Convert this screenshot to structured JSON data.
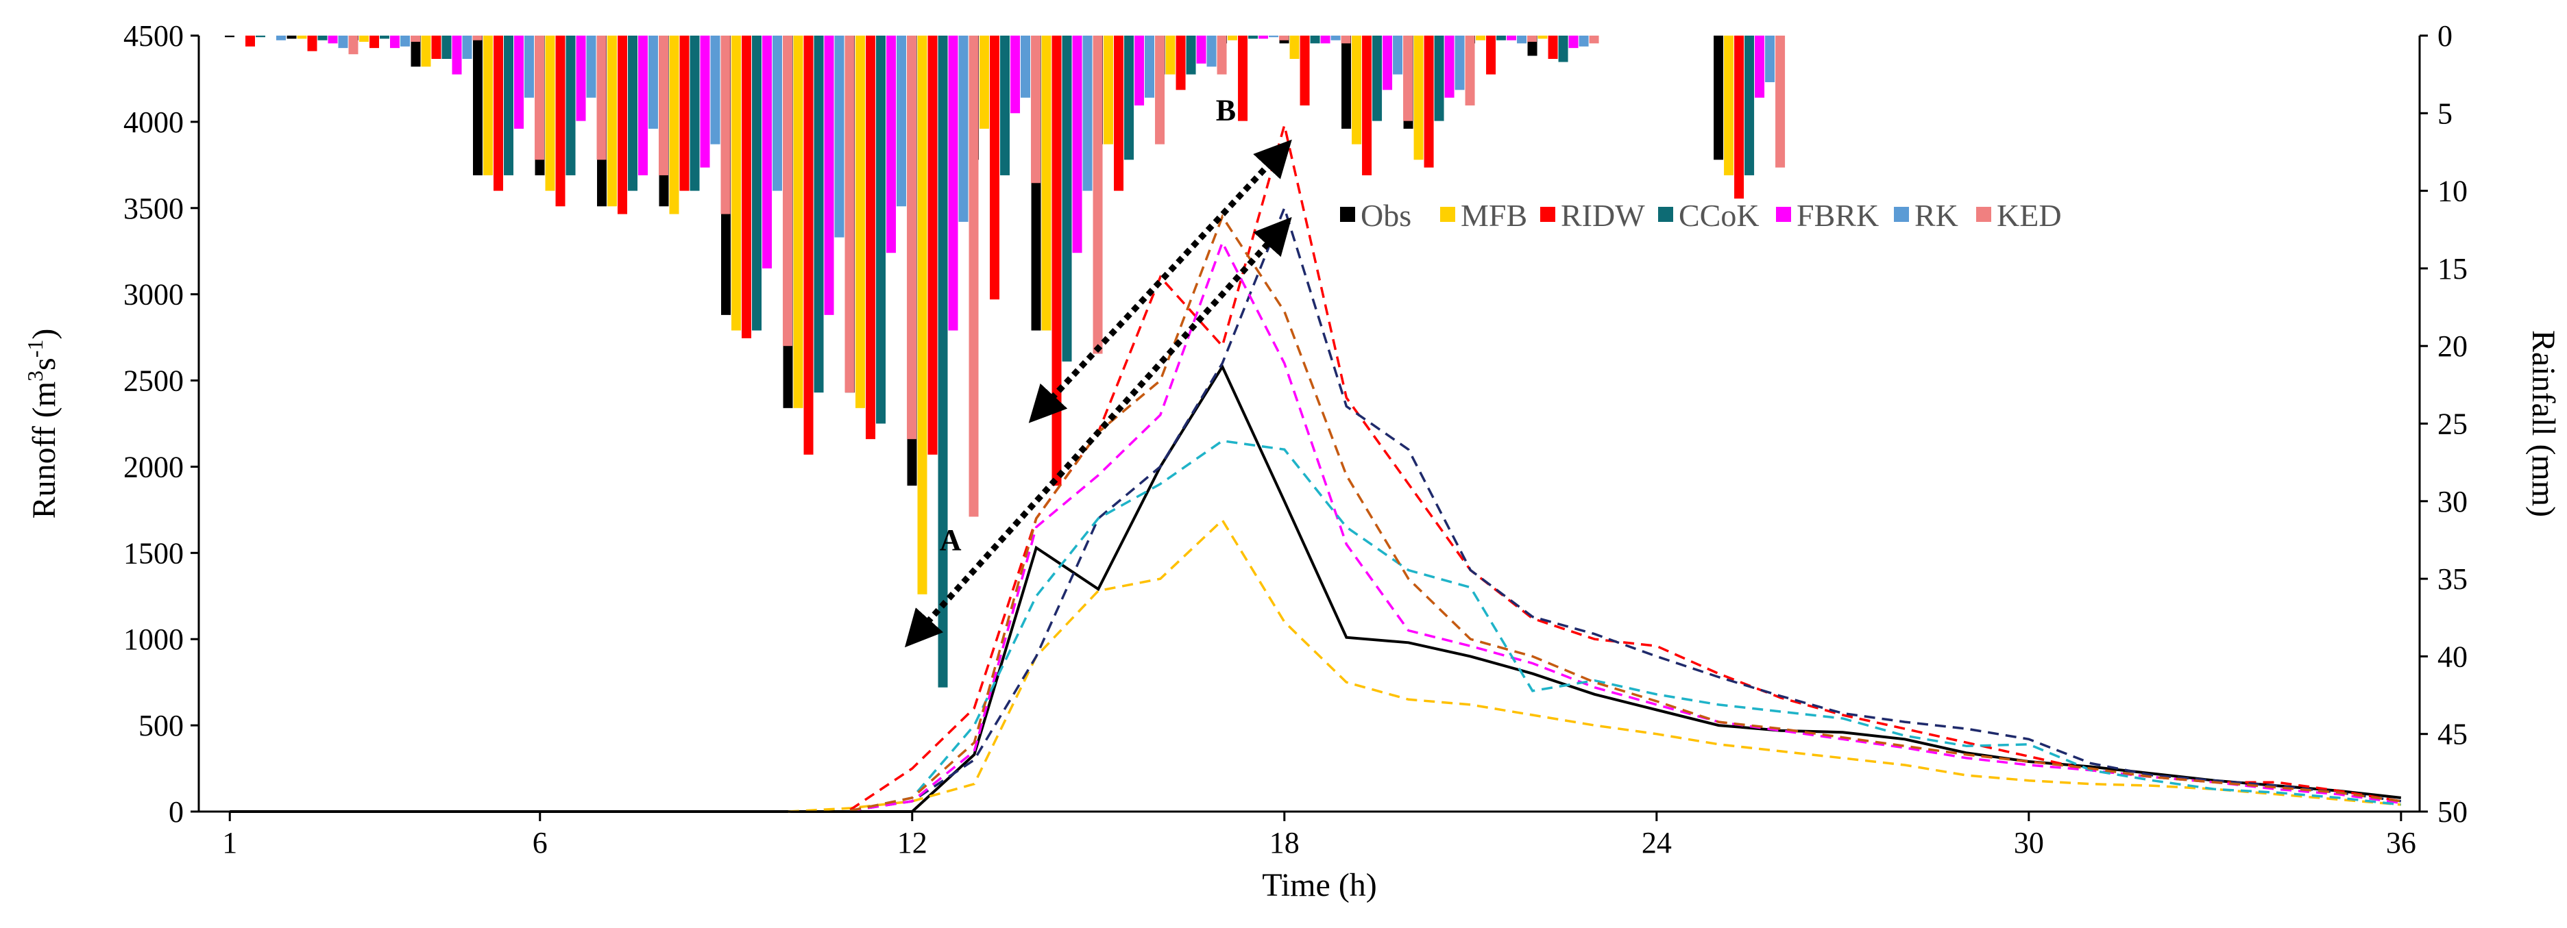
{
  "chart_data": {
    "type": "bar+line",
    "xlabel": "Time  (h)",
    "ylabel_left": "Runoff (m3s-1)",
    "ylabel_right": "Rainfall (mm)",
    "x_range": [
      1,
      36
    ],
    "x_ticks": [
      "1",
      "6",
      "12",
      "18",
      "24",
      "30",
      "36"
    ],
    "y_left_range": [
      0,
      4500
    ],
    "y_left_ticks": [
      "0",
      "500",
      "1000",
      "1500",
      "2000",
      "2500",
      "3000",
      "3500",
      "4000",
      "4500"
    ],
    "y_right_range": [
      0,
      50
    ],
    "y_right_inverted": true,
    "y_right_ticks": [
      "0",
      "5",
      "10",
      "15",
      "20",
      "25",
      "30",
      "35",
      "40",
      "45",
      "50"
    ],
    "bar_series": [
      {
        "name": "Obs",
        "color": "#000000",
        "values": [
          0.1,
          0.2,
          0.3,
          2,
          9,
          9,
          11,
          11,
          18,
          24,
          23,
          29,
          8,
          19,
          7,
          2.5,
          0.5,
          0.5,
          6,
          6,
          0.5,
          1.3,
          0,
          0,
          8
        ]
      },
      {
        "name": "MFB",
        "color": "#ffd000",
        "values": [
          0,
          0.2,
          0.4,
          2,
          9,
          10,
          11,
          11.5,
          19,
          24,
          24,
          36,
          6,
          19,
          7,
          2.5,
          0.3,
          1.5,
          7,
          8,
          0.3,
          0.2,
          0,
          0,
          9
        ]
      },
      {
        "name": "RIDW",
        "color": "#ff0000",
        "values": [
          0.7,
          1,
          0.8,
          1.5,
          10,
          11,
          11.5,
          10,
          19.5,
          27,
          26,
          27,
          17,
          29,
          10,
          3.5,
          5.5,
          4.5,
          9,
          8.5,
          2.5,
          1.5,
          0,
          0,
          10.5
        ]
      },
      {
        "name": "CCoK",
        "color": "#0d6b74",
        "values": [
          0.1,
          0.3,
          0.2,
          1.5,
          9,
          9,
          10,
          10,
          19,
          23,
          25,
          42,
          9,
          21,
          8,
          2.5,
          0.2,
          0.5,
          5.5,
          5.5,
          0.3,
          1.7,
          0,
          0,
          9
        ]
      },
      {
        "name": "FBRK",
        "color": "#ff00ff",
        "values": [
          0,
          0.5,
          0.8,
          2.5,
          6,
          5.5,
          9,
          8.5,
          15,
          18,
          14,
          19,
          5,
          14,
          4.5,
          1.8,
          0.2,
          0.5,
          3.5,
          4,
          0.3,
          0.8,
          0,
          0,
          4
        ]
      },
      {
        "name": "RK",
        "color": "#5b9bd5",
        "values": [
          0.3,
          0.8,
          0.7,
          1.5,
          4,
          4,
          6,
          7,
          10,
          13,
          11,
          12,
          4,
          10,
          4,
          2,
          0.1,
          0.3,
          2.5,
          3.5,
          0.5,
          0.7,
          0,
          0,
          3
        ]
      },
      {
        "name": "KED",
        "color": "#f08080",
        "values": [
          0,
          1.2,
          0.4,
          0.3,
          8,
          8,
          9,
          11.5,
          20,
          23,
          26,
          31,
          9.5,
          20.5,
          7,
          2.5,
          0.3,
          0.5,
          5.5,
          4.5,
          0.4,
          0.5,
          0,
          0,
          8.5
        ]
      }
    ],
    "line_series": [
      {
        "name": "Obs",
        "style": "solid",
        "color": "#000000",
        "x": [
          1,
          2,
          3,
          4,
          5,
          6,
          7,
          8,
          9,
          10,
          11,
          12,
          13,
          14,
          15,
          16,
          17,
          18,
          19,
          20,
          21,
          22,
          23,
          24,
          25,
          26,
          27,
          28,
          29,
          30,
          31,
          32,
          33,
          34,
          35,
          36
        ],
        "y": [
          0,
          0,
          0,
          0,
          0,
          0,
          0,
          0,
          0,
          0,
          0,
          0,
          330,
          1530,
          1290,
          2000,
          2580,
          1800,
          1010,
          980,
          900,
          800,
          680,
          590,
          500,
          470,
          460,
          420,
          340,
          290,
          260,
          220,
          180,
          150,
          120,
          80
        ]
      },
      {
        "name": "MFB",
        "style": "dashed",
        "color": "#ffc000",
        "x": [
          10,
          11,
          12,
          13,
          14,
          15,
          16,
          17,
          18,
          19,
          20,
          21,
          22,
          23,
          24,
          25,
          26,
          27,
          28,
          29,
          30,
          31,
          32,
          33,
          34,
          35,
          36
        ],
        "y": [
          0,
          20,
          60,
          160,
          900,
          1280,
          1350,
          1690,
          1100,
          750,
          650,
          620,
          560,
          500,
          450,
          390,
          350,
          310,
          270,
          210,
          180,
          160,
          150,
          130,
          100,
          70,
          40
        ]
      },
      {
        "name": "RIDW",
        "style": "dashed",
        "color": "#ff0000",
        "x": [
          11,
          12,
          13,
          14,
          15,
          16,
          17,
          18,
          19,
          20,
          21,
          22,
          23,
          24,
          25,
          26,
          27,
          28,
          29,
          30,
          31,
          32,
          33,
          34,
          35,
          36
        ],
        "y": [
          10,
          250,
          600,
          1700,
          2200,
          3100,
          2700,
          3980,
          2400,
          1900,
          1400,
          1120,
          1000,
          960,
          800,
          660,
          560,
          480,
          400,
          320,
          240,
          200,
          170,
          170,
          120,
          60
        ]
      },
      {
        "name": "CCoK",
        "style": "dashed",
        "color": "#1f2a6b",
        "x": [
          11,
          12,
          13,
          14,
          15,
          16,
          17,
          18,
          19,
          20,
          21,
          22,
          23,
          24,
          25,
          26,
          27,
          28,
          29,
          30,
          31,
          32,
          33,
          34,
          35,
          36
        ],
        "y": [
          5,
          60,
          300,
          900,
          1700,
          2000,
          2600,
          3500,
          2350,
          2100,
          1400,
          1130,
          1030,
          900,
          780,
          670,
          570,
          520,
          480,
          420,
          280,
          210,
          180,
          150,
          110,
          60
        ]
      },
      {
        "name": "FBRK",
        "style": "dashed",
        "color": "#ff00ff",
        "x": [
          11,
          12,
          13,
          14,
          15,
          16,
          17,
          18,
          19,
          20,
          21,
          22,
          23,
          24,
          25,
          26,
          27,
          28,
          29,
          30,
          31,
          32,
          33,
          34,
          35,
          36
        ],
        "y": [
          5,
          60,
          350,
          1650,
          1950,
          2300,
          3300,
          2600,
          1550,
          1050,
          960,
          860,
          720,
          620,
          520,
          470,
          420,
          370,
          310,
          270,
          240,
          200,
          170,
          130,
          100,
          50
        ]
      },
      {
        "name": "RK",
        "style": "dashed",
        "color": "#1fb3c8",
        "x": [
          11,
          12,
          13,
          14,
          15,
          16,
          17,
          18,
          19,
          20,
          21,
          22,
          23,
          24,
          25,
          26,
          27,
          28,
          29,
          30,
          31,
          32,
          33,
          34,
          35,
          36
        ],
        "y": [
          5,
          80,
          500,
          1250,
          1700,
          1900,
          2150,
          2100,
          1650,
          1400,
          1300,
          700,
          760,
          680,
          620,
          580,
          540,
          440,
          380,
          390,
          240,
          180,
          130,
          110,
          80,
          40
        ]
      },
      {
        "name": "KED",
        "style": "dashed",
        "color": "#c55a11",
        "x": [
          11,
          12,
          13,
          14,
          15,
          16,
          17,
          18,
          19,
          20,
          21,
          22,
          23,
          24,
          25,
          26,
          27,
          28,
          29,
          30,
          31,
          32,
          33,
          34,
          35,
          36
        ],
        "y": [
          5,
          80,
          400,
          1700,
          2200,
          2500,
          3450,
          2900,
          1950,
          1350,
          1000,
          900,
          750,
          640,
          520,
          480,
          430,
          380,
          330,
          290,
          250,
          200,
          170,
          140,
          110,
          60
        ]
      }
    ],
    "annotations": [
      {
        "label": "A",
        "from": [
          12,
          1000
        ],
        "to": [
          18,
          3400
        ]
      },
      {
        "label": "B",
        "from": [
          14,
          2300
        ],
        "to": [
          18,
          3850
        ]
      }
    ],
    "legend": {
      "position": "top-right-center",
      "entries": [
        "Obs",
        "MFB",
        "RIDW",
        "CCoK",
        "FBRK",
        "RK",
        "KED"
      ]
    }
  }
}
